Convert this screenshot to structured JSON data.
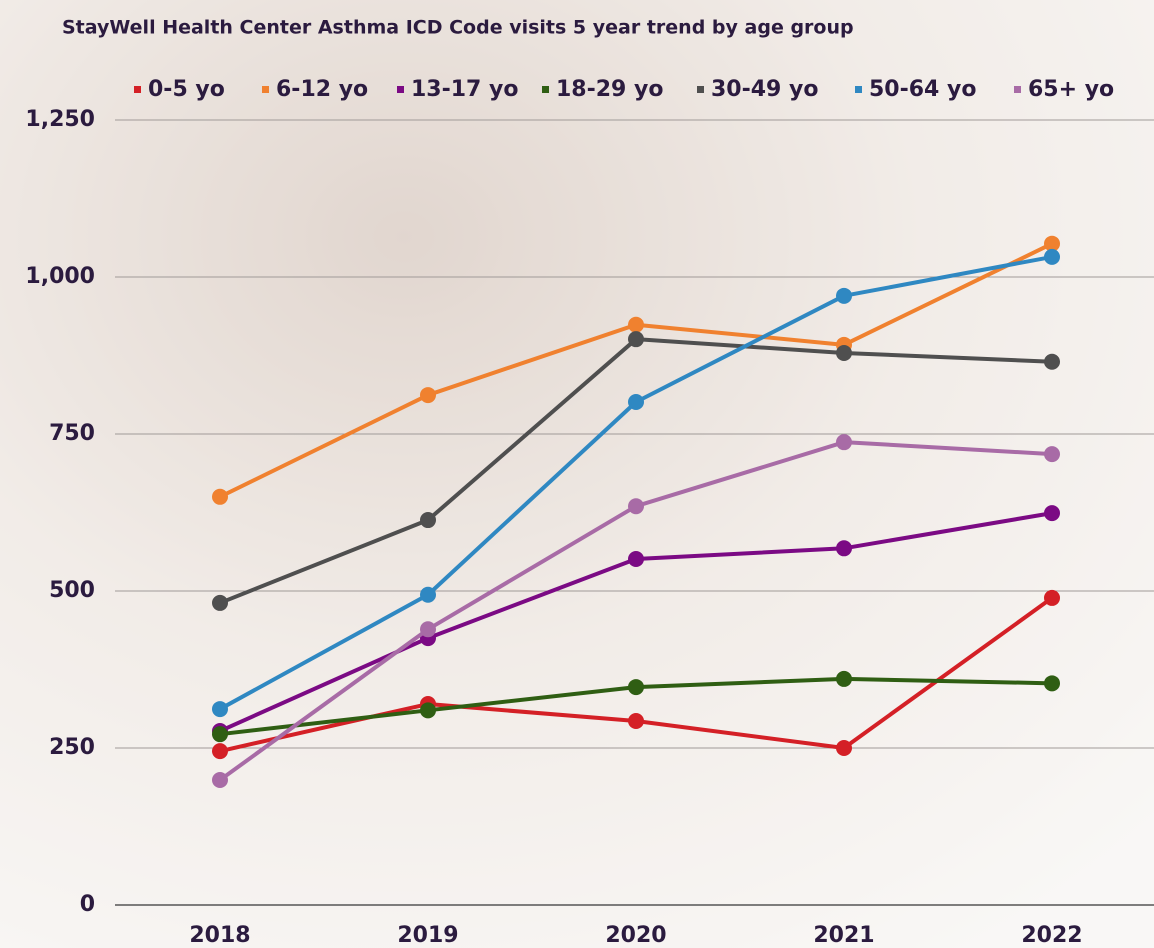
{
  "chart_data": {
    "type": "line",
    "title": "StayWell Health Center Asthma ICD Code visits 5 year trend by age group",
    "categories": [
      "2018",
      "2019",
      "2020",
      "2021",
      "2022"
    ],
    "series": [
      {
        "name": "0-5 yo",
        "color": "#d42026",
        "values": [
          245,
          320,
          293,
          250,
          489
        ]
      },
      {
        "name": "6-12 yo",
        "color": "#f0812f",
        "values": [
          650,
          812,
          924,
          892,
          1053
        ]
      },
      {
        "name": "13-17 yo",
        "color": "#7b0a84",
        "values": [
          277,
          425,
          551,
          568,
          624
        ]
      },
      {
        "name": "18-29 yo",
        "color": "#2f5e13",
        "values": [
          272,
          310,
          347,
          360,
          353
        ]
      },
      {
        "name": "30-49 yo",
        "color": "#4f4f4f",
        "values": [
          481,
          613,
          901,
          879,
          865
        ]
      },
      {
        "name": "50-64 yo",
        "color": "#2f88c2",
        "values": [
          312,
          494,
          801,
          970,
          1032
        ]
      },
      {
        "name": "65+ yo",
        "color": "#a86ba6",
        "values": [
          199,
          439,
          635,
          737,
          718
        ]
      }
    ],
    "ylim": [
      0,
      1250
    ],
    "yticks": [
      0,
      250,
      500,
      750,
      {
        "value": 1000,
        "label": "1,000"
      },
      {
        "value": 1250,
        "label": "1,250"
      }
    ],
    "grid": true
  }
}
